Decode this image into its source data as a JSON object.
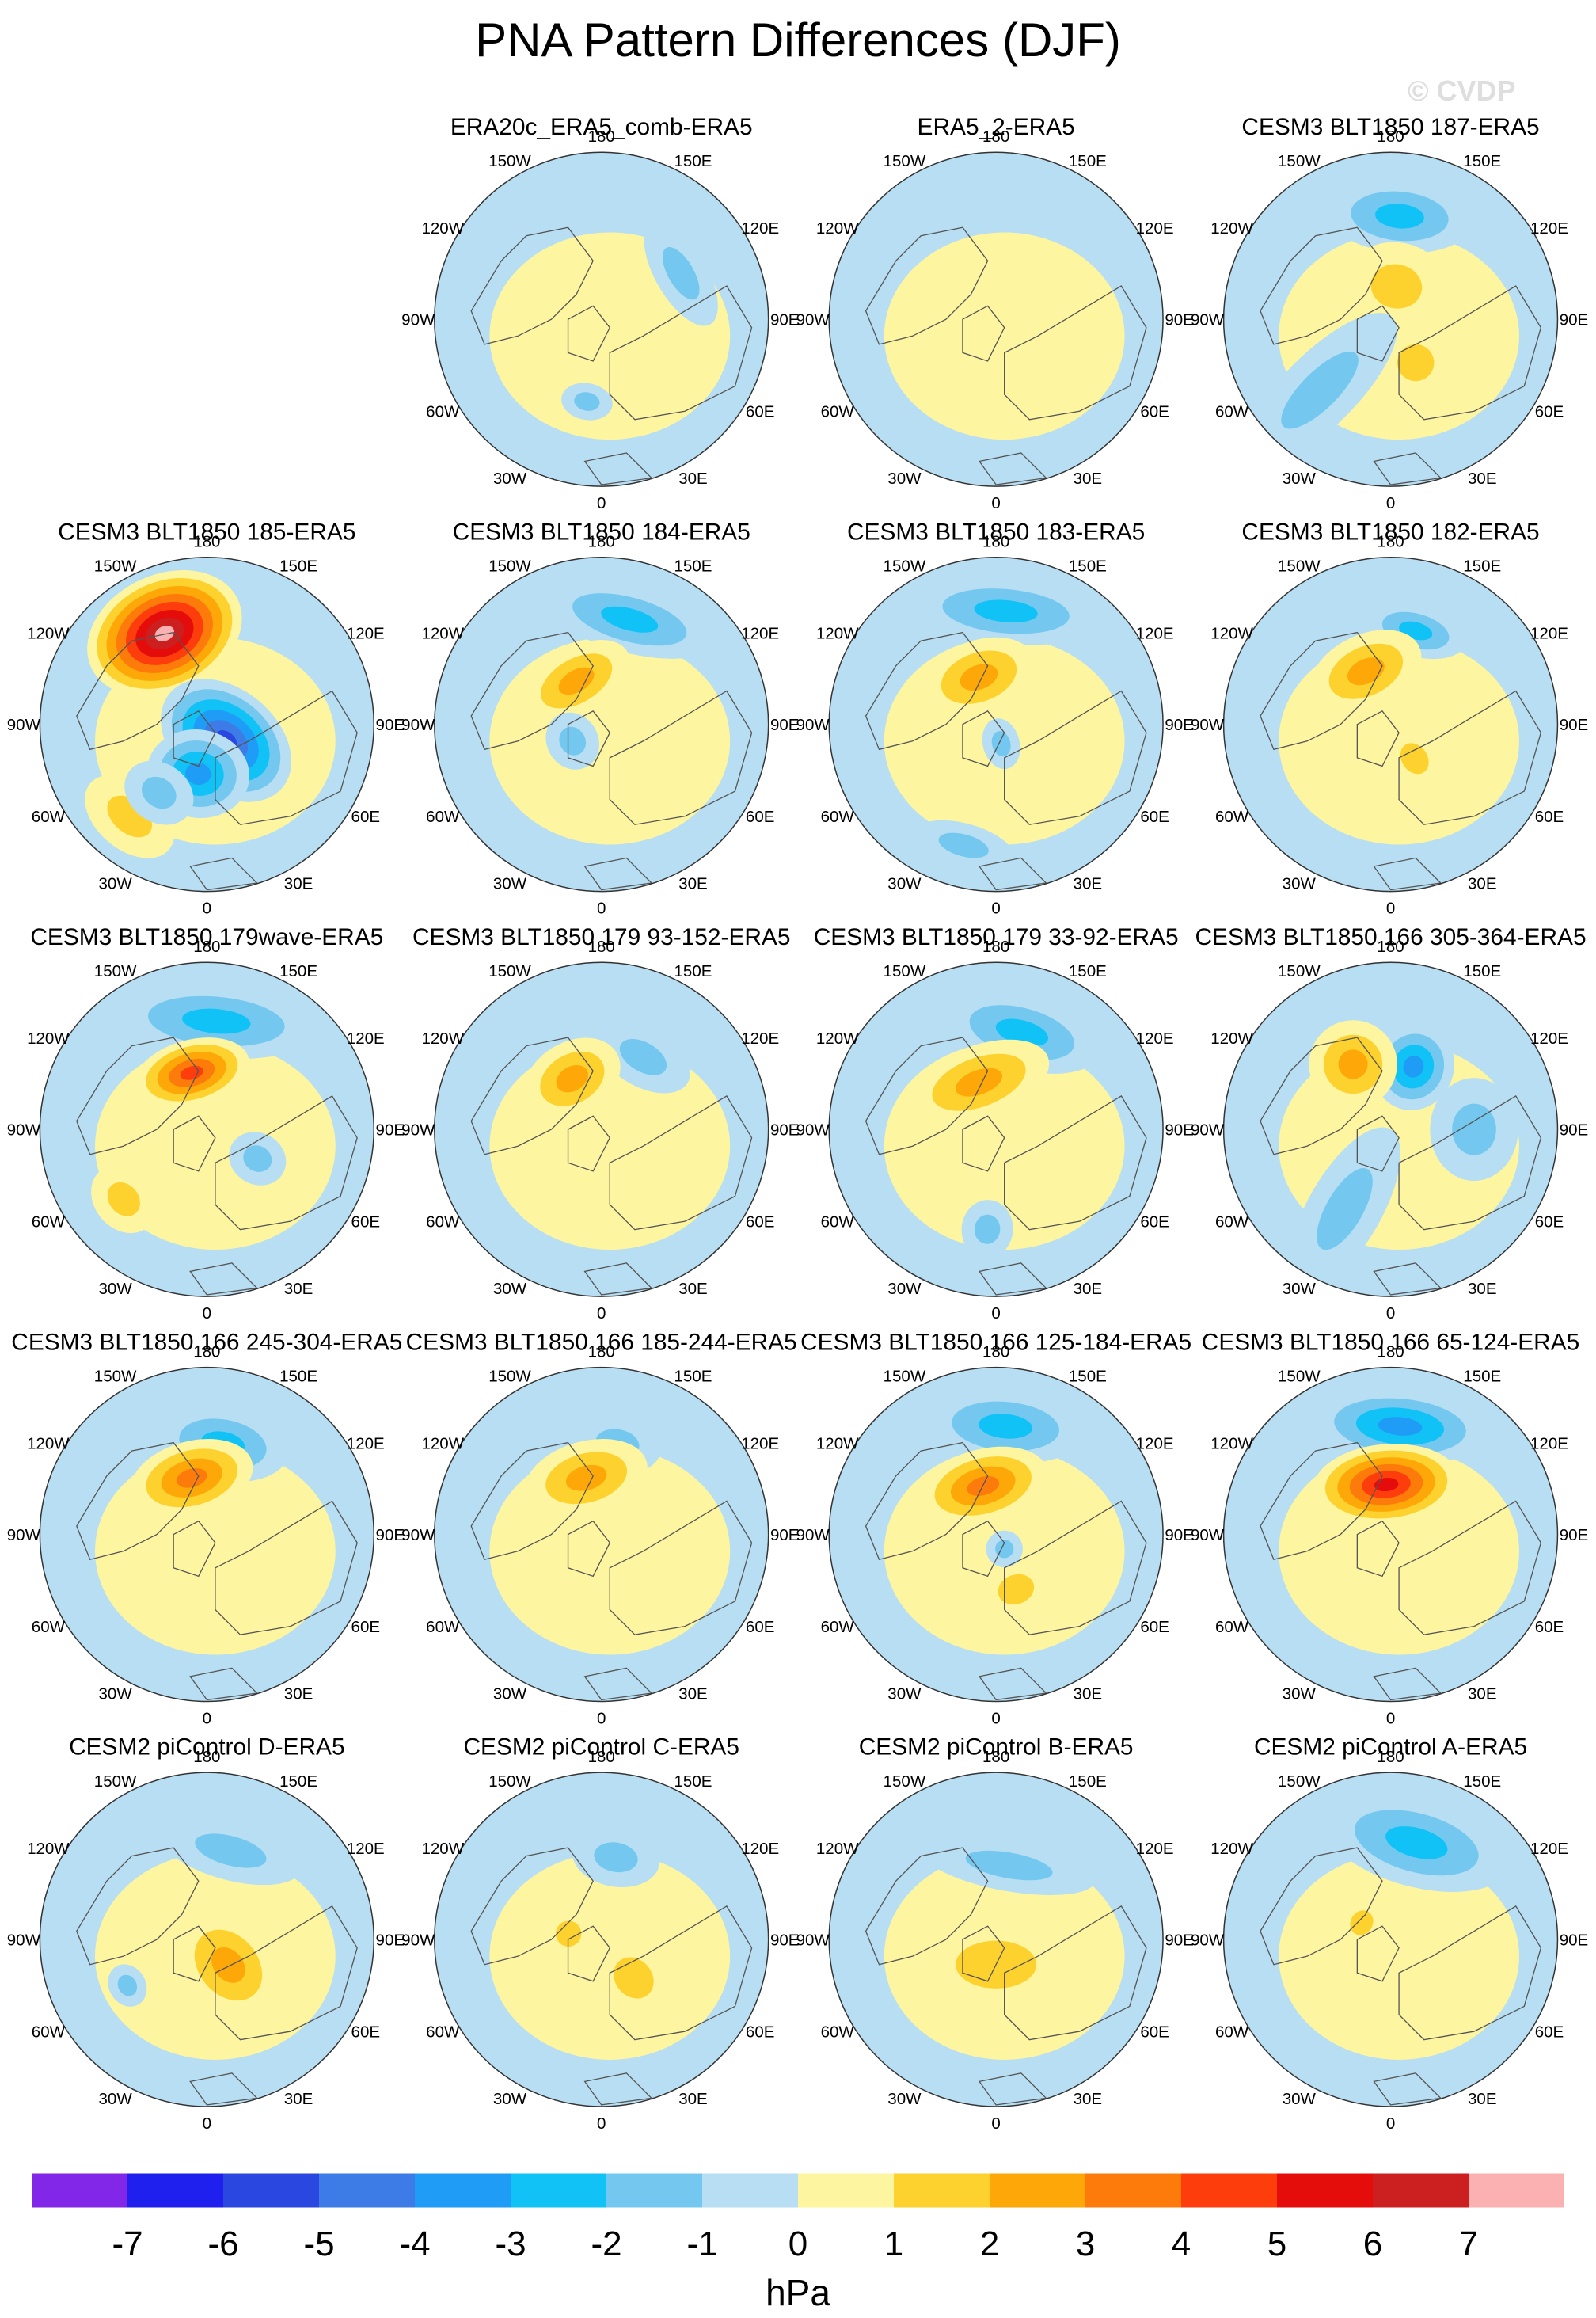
{
  "title": "PNA Pattern Differences (DJF)",
  "watermark": "© CVDP",
  "colors": {
    "land_outline": "#555555",
    "zero_fill": "#b7def2",
    "positive_1": "#fef5a1",
    "colorbar": [
      "#8226e8",
      "#2020ee",
      "#2a48e0",
      "#3d7ce6",
      "#1f9cf5",
      "#10c2f5",
      "#74c8ef",
      "#b7def2",
      "#fef5a1",
      "#fdd22e",
      "#fda808",
      "#fd7b0a",
      "#fd3e0c",
      "#e50c0c",
      "#cc2020",
      "#fbb1b1"
    ]
  },
  "chart_data": {
    "type": "contour-map-grid",
    "projection": "north-polar-stereographic",
    "variable": "PNA pattern difference",
    "season": "DJF",
    "units": "hPa",
    "colorbar_levels": [
      -7,
      -6,
      -5,
      -4,
      -3,
      -2,
      -1,
      0,
      1,
      2,
      3,
      4,
      5,
      6,
      7
    ],
    "colorbar_labels": [
      "-7",
      "-6",
      "-5",
      "-4",
      "-3",
      "-2",
      "-1",
      "0",
      "1",
      "2",
      "3",
      "4",
      "5",
      "6",
      "7"
    ],
    "longitude_labels": [
      "180",
      "150E",
      "120E",
      "90E",
      "60E",
      "30E",
      "0",
      "30W",
      "60W",
      "90W",
      "120W",
      "150W"
    ],
    "grid": {
      "rows": 5,
      "cols": 4,
      "empty_slots": [
        [
          0,
          0
        ]
      ]
    },
    "panels": [
      {
        "title": "ERA20c_ERA5_comb-ERA5",
        "row": 0,
        "col": 1,
        "min": -1.5,
        "max": 1,
        "features": [
          {
            "lon": 120,
            "r": 0.55,
            "v": -1.2,
            "sx": 0.16,
            "sy": 0.07
          },
          {
            "lon": -10,
            "r": 0.5,
            "v": -1.1,
            "sx": 0.07,
            "sy": 0.05
          }
        ]
      },
      {
        "title": "ERA5_2-ERA5",
        "row": 0,
        "col": 2,
        "min": -1,
        "max": 1,
        "features": []
      },
      {
        "title": "CESM3 BLT1850 187-ERA5",
        "row": 0,
        "col": 3,
        "min": -2.5,
        "max": 2,
        "features": [
          {
            "lon": 175,
            "r": 0.62,
            "v": -2.3,
            "sx": 0.2,
            "sy": 0.1
          },
          {
            "lon": 170,
            "r": 0.2,
            "v": 1.8,
            "sx": 0.14,
            "sy": 0.12
          },
          {
            "lon": 30,
            "r": 0.3,
            "v": 1.4,
            "sx": 0.1,
            "sy": 0.1
          },
          {
            "lon": -45,
            "r": 0.6,
            "v": -1.3,
            "sx": 0.1,
            "sy": 0.28
          }
        ]
      },
      {
        "title": "CESM3 BLT1850 185-ERA5",
        "row": 1,
        "col": 0,
        "min": -6,
        "max": 7,
        "features": [
          {
            "lon": -155,
            "r": 0.6,
            "v": 7.3,
            "sx": 0.22,
            "sy": 0.16
          },
          {
            "lon": 50,
            "r": 0.15,
            "v": -6,
            "sx": 0.14,
            "sy": 0.2
          },
          {
            "lon": -10,
            "r": 0.3,
            "v": -4,
            "sx": 0.14,
            "sy": 0.12
          },
          {
            "lon": -40,
            "r": 0.72,
            "v": 2,
            "sx": 0.14,
            "sy": 0.09
          },
          {
            "lon": -35,
            "r": 0.5,
            "v": -2,
            "sx": 0.1,
            "sy": 0.08
          }
        ]
      },
      {
        "title": "CESM3 BLT1850 184-ERA5",
        "row": 1,
        "col": 1,
        "min": -3,
        "max": 2.5,
        "features": [
          {
            "lon": 165,
            "r": 0.65,
            "v": -3,
            "sx": 0.24,
            "sy": 0.09
          },
          {
            "lon": -150,
            "r": 0.3,
            "v": 2.3,
            "sx": 0.16,
            "sy": 0.09
          },
          {
            "lon": -60,
            "r": 0.2,
            "v": -1.2,
            "sx": 0.08,
            "sy": 0.07
          }
        ]
      },
      {
        "title": "CESM3 BLT1850 183-ERA5",
        "row": 1,
        "col": 2,
        "min": -2.5,
        "max": 3,
        "features": [
          {
            "lon": 175,
            "r": 0.68,
            "v": -2.6,
            "sx": 0.26,
            "sy": 0.09
          },
          {
            "lon": -160,
            "r": 0.3,
            "v": 3,
            "sx": 0.16,
            "sy": 0.1
          },
          {
            "lon": 15,
            "r": 0.12,
            "v": -1.6,
            "sx": 0.05,
            "sy": 0.07
          },
          {
            "lon": -15,
            "r": 0.75,
            "v": -1.5,
            "sx": 0.14,
            "sy": 0.06
          }
        ]
      },
      {
        "title": "CESM3 BLT1850 182-ERA5",
        "row": 1,
        "col": 3,
        "min": -3,
        "max": 2.5,
        "features": [
          {
            "lon": 165,
            "r": 0.58,
            "v": -3,
            "sx": 0.14,
            "sy": 0.07
          },
          {
            "lon": -155,
            "r": 0.35,
            "v": 2.4,
            "sx": 0.16,
            "sy": 0.1
          },
          {
            "lon": 35,
            "r": 0.25,
            "v": 1.8,
            "sx": 0.07,
            "sy": 0.09
          }
        ]
      },
      {
        "title": "CESM3 BLT1850 179wave-ERA5",
        "row": 2,
        "col": 0,
        "min": -3,
        "max": 4.3,
        "features": [
          {
            "lon": 175,
            "r": 0.65,
            "v": -3,
            "sx": 0.28,
            "sy": 0.1
          },
          {
            "lon": -165,
            "r": 0.35,
            "v": 4.3,
            "sx": 0.16,
            "sy": 0.09
          },
          {
            "lon": -50,
            "r": 0.65,
            "v": 1.8,
            "sx": 0.1,
            "sy": 0.08
          },
          {
            "lon": 60,
            "r": 0.35,
            "v": -1.2,
            "sx": 0.07,
            "sy": 0.08
          }
        ]
      },
      {
        "title": "CESM3 BLT1850 179 93-152-ERA5",
        "row": 2,
        "col": 1,
        "min": -2,
        "max": 2.5,
        "features": [
          {
            "lon": 150,
            "r": 0.5,
            "v": -2,
            "sx": 0.14,
            "sy": 0.08
          },
          {
            "lon": -150,
            "r": 0.35,
            "v": 2.5,
            "sx": 0.14,
            "sy": 0.1
          }
        ]
      },
      {
        "title": "CESM3 BLT1850 179 33-92-ERA5",
        "row": 2,
        "col": 2,
        "min": -2.5,
        "max": 3,
        "features": [
          {
            "lon": 165,
            "r": 0.6,
            "v": -2.4,
            "sx": 0.22,
            "sy": 0.1
          },
          {
            "lon": -160,
            "r": 0.3,
            "v": 3,
            "sx": 0.2,
            "sy": 0.1
          },
          {
            "lon": -5,
            "r": 0.6,
            "v": -1.2,
            "sx": 0.07,
            "sy": 0.08
          }
        ]
      },
      {
        "title": "CESM3 BLT1850 166 305-364-ERA5",
        "row": 2,
        "col": 3,
        "min": -3.5,
        "max": 3,
        "features": [
          {
            "lon": 160,
            "r": 0.4,
            "v": -3.4,
            "sx": 0.11,
            "sy": 0.12
          },
          {
            "lon": -150,
            "r": 0.45,
            "v": 3,
            "sx": 0.12,
            "sy": 0.12
          },
          {
            "lon": -30,
            "r": 0.55,
            "v": -1.5,
            "sx": 0.1,
            "sy": 0.25
          },
          {
            "lon": 90,
            "r": 0.5,
            "v": -1.2,
            "sx": 0.14,
            "sy": 0.12
          }
        ]
      },
      {
        "title": "CESM3 BLT1850 166 245-304-ERA5",
        "row": 3,
        "col": 0,
        "min": -2.5,
        "max": 3.5,
        "features": [
          {
            "lon": 170,
            "r": 0.55,
            "v": -2.5,
            "sx": 0.18,
            "sy": 0.1
          },
          {
            "lon": -165,
            "r": 0.35,
            "v": 3.6,
            "sx": 0.17,
            "sy": 0.1
          }
        ]
      },
      {
        "title": "CESM3 BLT1850 166 185-244-ERA5",
        "row": 3,
        "col": 1,
        "min": -2,
        "max": 2.5,
        "features": [
          {
            "lon": 170,
            "r": 0.55,
            "v": -2,
            "sx": 0.12,
            "sy": 0.08
          },
          {
            "lon": -165,
            "r": 0.35,
            "v": 2.6,
            "sx": 0.17,
            "sy": 0.1
          }
        ]
      },
      {
        "title": "CESM3 BLT1850 166 125-184-ERA5",
        "row": 3,
        "col": 2,
        "min": -2.5,
        "max": 3.5,
        "features": [
          {
            "lon": 175,
            "r": 0.65,
            "v": -2.6,
            "sx": 0.22,
            "sy": 0.1
          },
          {
            "lon": -165,
            "r": 0.3,
            "v": 3.7,
            "sx": 0.18,
            "sy": 0.1
          },
          {
            "lon": 20,
            "r": 0.35,
            "v": 2,
            "sx": 0.1,
            "sy": 0.08
          },
          {
            "lon": 30,
            "r": 0.1,
            "v": -1.2,
            "sx": 0.05,
            "sy": 0.05
          }
        ]
      },
      {
        "title": "CESM3 BLT1850 166 65-124-ERA5",
        "row": 3,
        "col": 3,
        "min": -3,
        "max": 5.5,
        "features": [
          {
            "lon": 175,
            "r": 0.65,
            "v": -3.1,
            "sx": 0.24,
            "sy": 0.1
          },
          {
            "lon": -175,
            "r": 0.3,
            "v": 5.6,
            "sx": 0.2,
            "sy": 0.11
          }
        ]
      },
      {
        "title": "CESM2 piControl D-ERA5",
        "row": 4,
        "col": 0,
        "min": -2,
        "max": 3,
        "features": [
          {
            "lon": 165,
            "r": 0.55,
            "v": -2,
            "sx": 0.2,
            "sy": 0.08
          },
          {
            "lon": 40,
            "r": 0.2,
            "v": 3,
            "sx": 0.12,
            "sy": 0.16
          },
          {
            "lon": -60,
            "r": 0.55,
            "v": -1.2,
            "sx": 0.06,
            "sy": 0.05
          }
        ]
      },
      {
        "title": "CESM2 piControl C-ERA5",
        "row": 4,
        "col": 1,
        "min": -2,
        "max": 2,
        "features": [
          {
            "lon": 170,
            "r": 0.5,
            "v": -2,
            "sx": 0.12,
            "sy": 0.08
          },
          {
            "lon": 40,
            "r": 0.3,
            "v": 2,
            "sx": 0.1,
            "sy": 0.12
          },
          {
            "lon": -100,
            "r": 0.2,
            "v": 2,
            "sx": 0.07,
            "sy": 0.07
          }
        ]
      },
      {
        "title": "CESM2 piControl B-ERA5",
        "row": 4,
        "col": 2,
        "min": -2,
        "max": 2,
        "features": [
          {
            "lon": 170,
            "r": 0.45,
            "v": -2,
            "sx": 0.24,
            "sy": 0.07
          },
          {
            "lon": 0,
            "r": 0.15,
            "v": 2,
            "sx": 0.22,
            "sy": 0.13
          }
        ]
      },
      {
        "title": "CESM2 piControl A-ERA5",
        "row": 4,
        "col": 3,
        "min": -2.5,
        "max": 1.5,
        "features": [
          {
            "lon": 165,
            "r": 0.6,
            "v": -2.5,
            "sx": 0.26,
            "sy": 0.12
          },
          {
            "lon": -120,
            "r": 0.2,
            "v": 1.6,
            "sx": 0.07,
            "sy": 0.06
          }
        ]
      }
    ]
  }
}
